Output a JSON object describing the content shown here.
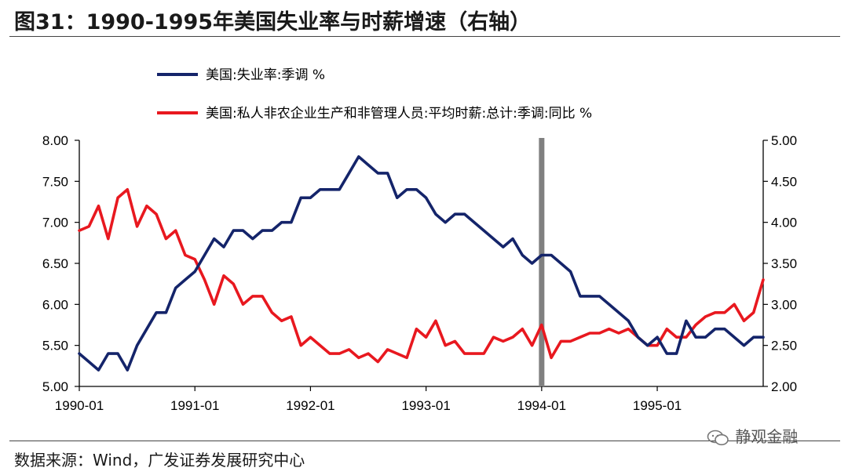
{
  "title": "图31：1990-1995年美国失业率与时薪增速（右轴）",
  "source": "数据来源：Wind，广发证券发展研究中心",
  "watermark": "静观金融",
  "colors": {
    "unemployment": "#14246a",
    "wage": "#e8181f",
    "marker": "#808080"
  },
  "chart_data": {
    "type": "line",
    "title": "1990-1995年美国失业率与时薪增速（右轴）",
    "grid": false,
    "legend_position": "top-left",
    "x_ticks": [
      "1990-01",
      "1991-01",
      "1992-01",
      "1993-01",
      "1994-01",
      "1995-01"
    ],
    "x_range": [
      "1990-01",
      "1995-12"
    ],
    "y_left": {
      "ticks": [
        "8.00",
        "7.50",
        "7.00",
        "6.50",
        "6.00",
        "5.50",
        "5.00"
      ],
      "ylim": [
        5.0,
        8.0
      ]
    },
    "y_right": {
      "ticks": [
        "5.00",
        "4.50",
        "4.00",
        "3.50",
        "3.00",
        "2.50",
        "2.00"
      ],
      "ylim": [
        2.0,
        5.0
      ]
    },
    "vertical_marker": "1994-01",
    "series": [
      {
        "name": "美国:失业率:季调 %",
        "axis": "left",
        "values": [
          5.4,
          5.3,
          5.2,
          5.4,
          5.4,
          5.2,
          5.5,
          5.7,
          5.9,
          5.9,
          6.2,
          6.3,
          6.4,
          6.6,
          6.8,
          6.7,
          6.9,
          6.9,
          6.8,
          6.9,
          6.9,
          7.0,
          7.0,
          7.3,
          7.3,
          7.4,
          7.4,
          7.4,
          7.6,
          7.8,
          7.7,
          7.6,
          7.6,
          7.3,
          7.4,
          7.4,
          7.3,
          7.1,
          7.0,
          7.1,
          7.1,
          7.0,
          6.9,
          6.8,
          6.7,
          6.8,
          6.6,
          6.5,
          6.6,
          6.6,
          6.5,
          6.4,
          6.1,
          6.1,
          6.1,
          6.0,
          5.9,
          5.8,
          5.6,
          5.5,
          5.6,
          5.4,
          5.4,
          5.8,
          5.6,
          5.6,
          5.7,
          5.7,
          5.6,
          5.5,
          5.6,
          5.6
        ]
      },
      {
        "name": "美国:私人非农企业生产和非管理人员:平均时薪:总计:季调:同比 %",
        "axis": "right",
        "values": [
          3.9,
          3.95,
          4.2,
          3.8,
          4.3,
          4.4,
          3.95,
          4.2,
          4.1,
          3.8,
          3.9,
          3.6,
          3.55,
          3.3,
          3.0,
          3.35,
          3.25,
          3.0,
          3.1,
          3.1,
          2.9,
          2.8,
          2.85,
          2.5,
          2.6,
          2.5,
          2.4,
          2.4,
          2.45,
          2.35,
          2.4,
          2.3,
          2.45,
          2.4,
          2.35,
          2.7,
          2.6,
          2.8,
          2.5,
          2.55,
          2.4,
          2.4,
          2.4,
          2.6,
          2.55,
          2.6,
          2.7,
          2.5,
          2.75,
          2.35,
          2.55,
          2.55,
          2.6,
          2.65,
          2.65,
          2.7,
          2.65,
          2.7,
          2.6,
          2.5,
          2.5,
          2.7,
          2.6,
          2.6,
          2.75,
          2.85,
          2.9,
          2.9,
          3.0,
          2.8,
          2.9,
          3.3
        ]
      }
    ]
  }
}
